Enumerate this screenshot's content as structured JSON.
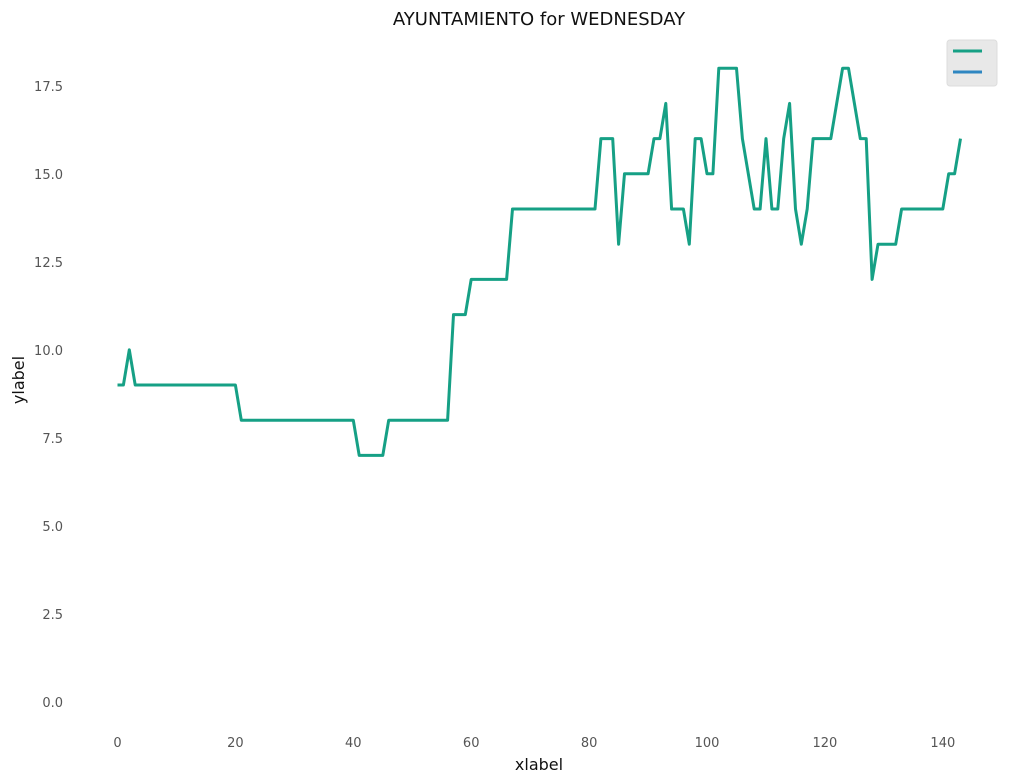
{
  "chart_data": {
    "type": "line",
    "title": "AYUNTAMIENTO for WEDNESDAY",
    "xlabel": "xlabel",
    "ylabel": "ylabel",
    "xlim": [
      -5,
      148
    ],
    "ylim": [
      -0.8,
      19.0
    ],
    "xticks": [
      0,
      20,
      40,
      60,
      80,
      100,
      120,
      140
    ],
    "yticks": [
      0.0,
      2.5,
      5.0,
      7.5,
      10.0,
      12.5,
      15.0,
      17.5
    ],
    "ytick_labels": [
      "0.0",
      "2.5",
      "5.0",
      "7.5",
      "10.0",
      "12.5",
      "15.0",
      "17.5"
    ],
    "grid": false,
    "legend": "top-right",
    "series": [
      {
        "color": "#16a085",
        "x": [
          0,
          1,
          2,
          3,
          4,
          5,
          6,
          7,
          8,
          9,
          10,
          11,
          12,
          13,
          14,
          15,
          16,
          17,
          18,
          19,
          20,
          21,
          22,
          23,
          24,
          25,
          26,
          27,
          28,
          29,
          30,
          31,
          32,
          33,
          34,
          35,
          36,
          37,
          38,
          39,
          40,
          41,
          42,
          43,
          44,
          45,
          46,
          47,
          48,
          49,
          50,
          51,
          52,
          53,
          54,
          55,
          56,
          57,
          58,
          59,
          60,
          61,
          62,
          63,
          64,
          65,
          66,
          67,
          68,
          69,
          70,
          71,
          72,
          73,
          74,
          75,
          76,
          77,
          78,
          79,
          80,
          81,
          82,
          83,
          84,
          85,
          86,
          87,
          88,
          89,
          90,
          91,
          92,
          93,
          94,
          95,
          96,
          97,
          98,
          99,
          100,
          101,
          102,
          103,
          104,
          105,
          106,
          107,
          108,
          109,
          110,
          111,
          112,
          113,
          114,
          115,
          116,
          117,
          118,
          119,
          120,
          121,
          122,
          123,
          124,
          125,
          126,
          127,
          128,
          129,
          130,
          131,
          132,
          133,
          134,
          135,
          136,
          137,
          138,
          139,
          140,
          141,
          142,
          143
        ],
        "y": [
          9,
          9,
          10,
          9,
          9,
          9,
          9,
          9,
          9,
          9,
          9,
          9,
          9,
          9,
          9,
          9,
          9,
          9,
          9,
          9,
          9,
          8,
          8,
          8,
          8,
          8,
          8,
          8,
          8,
          8,
          8,
          8,
          8,
          8,
          8,
          8,
          8,
          8,
          8,
          8,
          8,
          7,
          7,
          7,
          7,
          7,
          8,
          8,
          8,
          8,
          8,
          8,
          8,
          8,
          8,
          8,
          8,
          11,
          11,
          11,
          12,
          12,
          12,
          12,
          12,
          12,
          12,
          14,
          14,
          14,
          14,
          14,
          14,
          14,
          14,
          14,
          14,
          14,
          14,
          14,
          14,
          14,
          16,
          16,
          16,
          13,
          15,
          15,
          15,
          15,
          15,
          16,
          16,
          17,
          14,
          14,
          14,
          13,
          16,
          16,
          15,
          15,
          18,
          18,
          18,
          18,
          16,
          15,
          14,
          14,
          16,
          14,
          14,
          16,
          17,
          14,
          13,
          14,
          16,
          16,
          16,
          16,
          17,
          18,
          18,
          17,
          16,
          16,
          12,
          13,
          13,
          13,
          13,
          14,
          14,
          14,
          14,
          14,
          14,
          14,
          14,
          15,
          15,
          16
        ]
      },
      {
        "color": "#2e86c1",
        "x": [],
        "y": []
      }
    ]
  }
}
